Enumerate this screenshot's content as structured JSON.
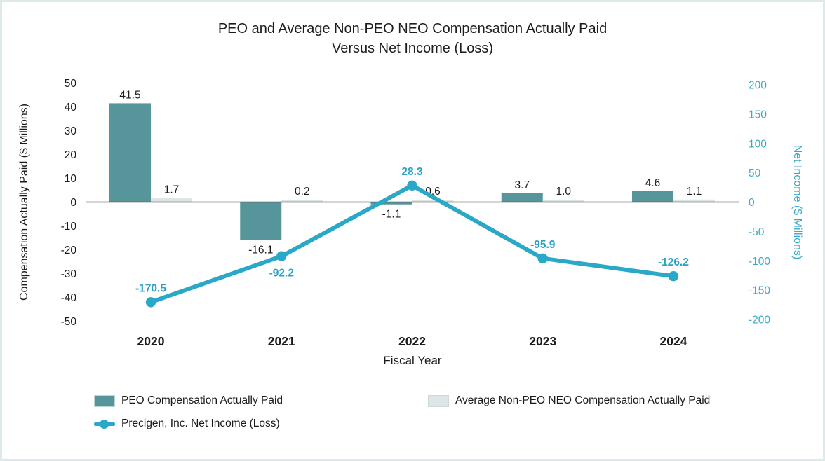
{
  "title": {
    "line1": "PEO and Average Non-PEO NEO Compensation Actually Paid",
    "line2": "Versus Net Income (Loss)"
  },
  "chart_data": {
    "type": "combo-bar-line",
    "categories": [
      "2020",
      "2021",
      "2022",
      "2023",
      "2024"
    ],
    "xlabel": "Fiscal Year",
    "grid": false,
    "legend_position": "bottom",
    "left_axis": {
      "label": "Compensation Actually Paid ($ Millions)",
      "min": -50,
      "max": 50,
      "tick_step": 10,
      "color": "#1a1a1a"
    },
    "right_axis": {
      "label": "Net Income ($ Millions)",
      "min": -200,
      "max": 200,
      "tick_step": 50,
      "color": "#3aa9c9"
    },
    "series": [
      {
        "name": "PEO Compensation Actually Paid",
        "type": "bar",
        "axis": "left",
        "color": "#569599",
        "values": [
          41.5,
          -16.1,
          -1.1,
          3.7,
          4.6
        ]
      },
      {
        "name": "Average Non-PEO NEO Compensation Actually Paid",
        "type": "bar",
        "axis": "left",
        "color": "#dce6e6",
        "values": [
          1.7,
          0.2,
          0.6,
          1.0,
          1.1
        ]
      },
      {
        "name": "Precigen, Inc. Net Income (Loss)",
        "type": "line",
        "axis": "right",
        "color": "#29a8c8",
        "label_color": "#2ba1c4",
        "values": [
          -170.5,
          -92.2,
          28.3,
          -95.9,
          -126.2
        ],
        "label_positions": [
          "above",
          "below",
          "above",
          "above",
          "above"
        ]
      }
    ],
    "bar_label_color": "#1a1a1a",
    "axis_line_color": "#58595b"
  }
}
